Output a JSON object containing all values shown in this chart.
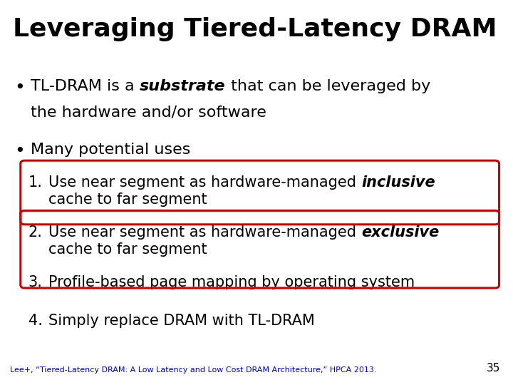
{
  "title": "Leveraging Tiered-Latency DRAM",
  "background_color": "#ffffff",
  "title_color": "#000000",
  "title_fontsize": 26,
  "body_fontsize": 16,
  "item_fontsize": 15,
  "footnote_fontsize": 8,
  "box_color": "#cc0000",
  "text_color": "#000000",
  "footnote_color": "#0000cc",
  "footnote": "Lee+, “Tiered-Latency DRAM: A Low Latency and Low Cost DRAM Architecture,” HPCA 2013.",
  "page_number": "35"
}
